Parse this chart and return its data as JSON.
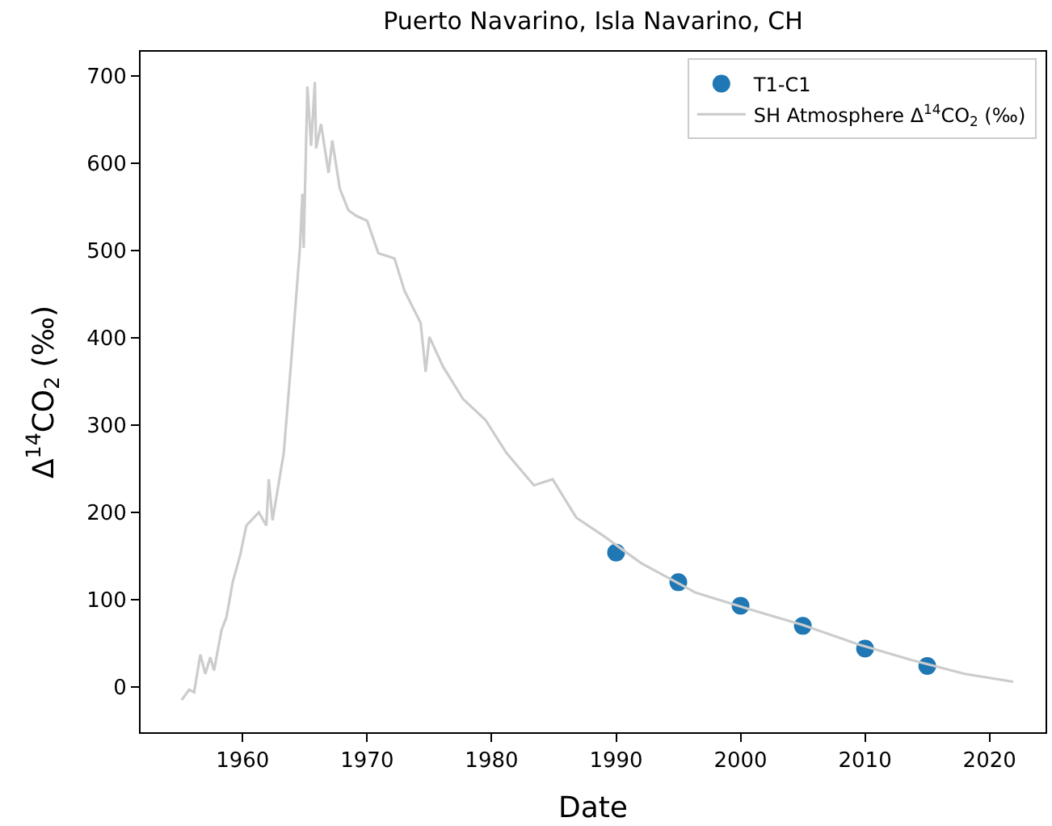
{
  "chart_data": {
    "type": "line",
    "title": "Puerto Navarino, Isla Navarino, CH",
    "xlabel": "Date",
    "ylabel": "Δ$^{14}$CO$_{2}$ (‰)",
    "xlim": [
      1951.8,
      2024.5
    ],
    "xticks": [
      1960,
      1970,
      1980,
      1990,
      2000,
      2010,
      2020
    ],
    "ylim": [
      -51.9,
      727.8
    ],
    "yticks": [
      0,
      100,
      200,
      300,
      400,
      500,
      600,
      700
    ],
    "legend": "top right",
    "series": [
      {
        "name": "T1-C1",
        "type": "scatter",
        "marker": "circle",
        "color": "#1f77b4",
        "x": [
          1990,
          1995,
          2000,
          2005,
          2010,
          2015
        ],
        "values": [
          154,
          120,
          93,
          70,
          44,
          24
        ]
      },
      {
        "name": "SH Atmosphere Δ$^{14}$CO$_{2}$ (‰)",
        "marker": "none",
        "color": "#cccccc",
        "x": [
          1955.1,
          1955.7,
          1956.1,
          1956.6,
          1957.0,
          1957.4,
          1957.7,
          1958.3,
          1958.7,
          1959.2,
          1959.8,
          1960.3,
          1961.3,
          1961.9,
          1962.1,
          1962.4,
          1963.3,
          1963.9,
          1964.6,
          1964.8,
          1964.9,
          1965.2,
          1965.5,
          1965.8,
          1965.9,
          1966.3,
          1966.9,
          1967.2,
          1967.8,
          1968.5,
          1969.1,
          1970.0,
          1970.9,
          1972.2,
          1973.0,
          1974.3,
          1974.7,
          1975.0,
          1976.1,
          1977.7,
          1979.5,
          1981.2,
          1983.4,
          1984.9,
          1986.8,
          1989.0,
          1992.0,
          1996.4,
          2000.7,
          2005.0,
          2009.4,
          2013.7,
          2018.0,
          2021.9
        ],
        "values": [
          -15,
          -3,
          -6,
          37,
          15,
          34,
          19,
          65,
          80,
          120,
          151,
          185,
          200,
          185,
          238,
          191,
          268,
          373,
          503,
          565,
          503,
          688,
          620,
          693,
          617,
          645,
          589,
          626,
          571,
          546,
          540,
          534,
          497,
          491,
          454,
          417,
          361,
          401,
          367,
          330,
          306,
          268,
          231,
          238,
          194,
          173,
          142,
          108,
          89,
          71,
          49,
          31,
          15,
          6
        ]
      }
    ]
  }
}
